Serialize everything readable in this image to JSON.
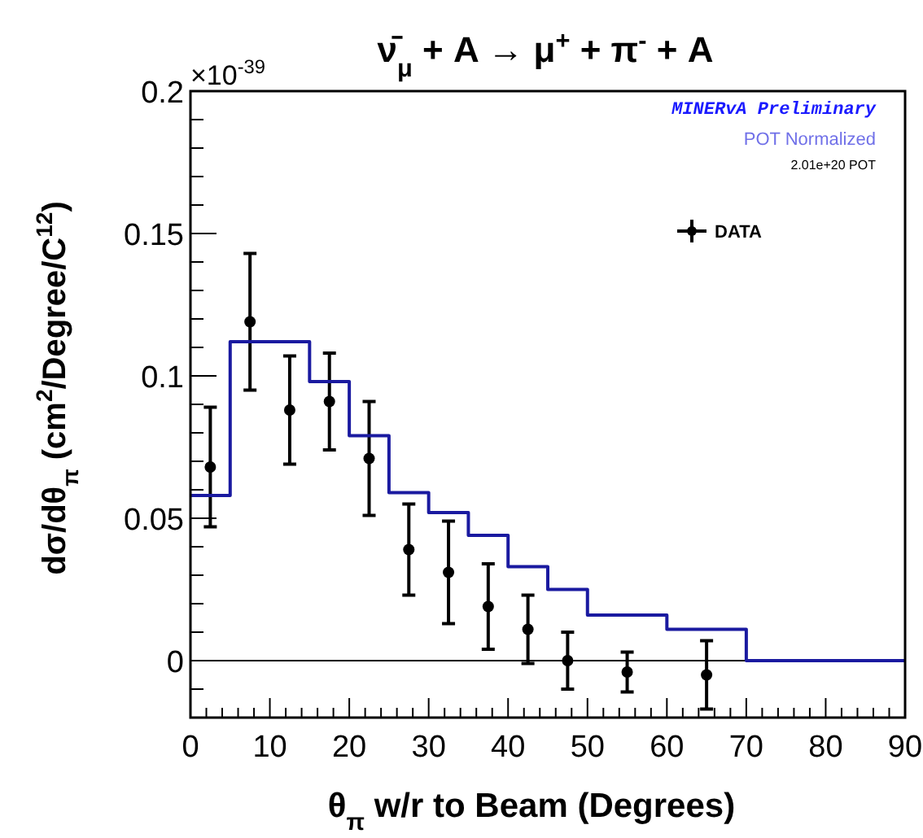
{
  "chart_data": {
    "type": "scatter",
    "title": "ν̄$_{μ}$ + A → μ$^{+}$ + π$^{-}$ + A",
    "xlabel": "θ$_{π}$ w/r to Beam (Degrees)",
    "ylabel": "dσ/dθ$_{π}$ (cm$^{2}$/Degree/C$^{12}$)",
    "annotations": [
      "×10$^{-39}$",
      "MINERvA Preliminary",
      "POT Normalized",
      "2.01e+20 POT"
    ],
    "xlim": [
      0,
      90
    ],
    "ylim": [
      -0.02,
      0.2
    ],
    "xticks": [
      0,
      {
        "value": 2,
        "label": null
      },
      {
        "value": 4,
        "label": null
      },
      {
        "value": 6,
        "label": null
      },
      {
        "value": 8,
        "label": null
      },
      10,
      {
        "value": 12,
        "label": null
      },
      {
        "value": 14,
        "label": null
      },
      {
        "value": 16,
        "label": null
      },
      {
        "value": 18,
        "label": null
      },
      20,
      {
        "value": 22,
        "label": null
      },
      {
        "value": 24,
        "label": null
      },
      {
        "value": 26,
        "label": null
      },
      {
        "value": 28,
        "label": null
      },
      30,
      {
        "value": 32,
        "label": null
      },
      {
        "value": 34,
        "label": null
      },
      {
        "value": 36,
        "label": null
      },
      {
        "value": 38,
        "label": null
      },
      40,
      {
        "value": 42,
        "label": null
      },
      {
        "value": 44,
        "label": null
      },
      {
        "value": 46,
        "label": null
      },
      {
        "value": 48,
        "label": null
      },
      50,
      {
        "value": 52,
        "label": null
      },
      {
        "value": 54,
        "label": null
      },
      {
        "value": 56,
        "label": null
      },
      {
        "value": 58,
        "label": null
      },
      60,
      {
        "value": 62,
        "label": null
      },
      {
        "value": 64,
        "label": null
      },
      {
        "value": 66,
        "label": null
      },
      {
        "value": 68,
        "label": null
      },
      70,
      {
        "value": 72,
        "label": null
      },
      {
        "value": 74,
        "label": null
      },
      {
        "value": 76,
        "label": null
      },
      {
        "value": 78,
        "label": null
      },
      80,
      {
        "value": 82,
        "label": null
      },
      {
        "value": 84,
        "label": null
      },
      {
        "value": 86,
        "label": null
      },
      {
        "value": 88,
        "label": null
      },
      90
    ],
    "yticks": [
      {
        "value": -0.01,
        "label": null
      },
      0,
      {
        "value": 0.01,
        "label": null
      },
      {
        "value": 0.02,
        "label": null
      },
      {
        "value": 0.03,
        "label": null
      },
      {
        "value": 0.04,
        "label": null
      },
      0.05,
      {
        "value": 0.06,
        "label": null
      },
      {
        "value": 0.07,
        "label": null
      },
      {
        "value": 0.08,
        "label": null
      },
      {
        "value": 0.09,
        "label": null
      },
      0.1,
      {
        "value": 0.11,
        "label": null
      },
      {
        "value": 0.12,
        "label": null
      },
      {
        "value": 0.13,
        "label": null
      },
      {
        "value": 0.14,
        "label": null
      },
      0.15,
      {
        "value": 0.16,
        "label": null
      },
      {
        "value": 0.17,
        "label": null
      },
      {
        "value": 0.18,
        "label": null
      },
      {
        "value": 0.19,
        "label": null
      },
      0.2
    ],
    "grid": false,
    "legend": "top right",
    "ref_lines": [
      {
        "axis": "y",
        "value": 0,
        "color": "#000000"
      }
    ],
    "series": [
      {
        "name": "DATA",
        "color": "#000000",
        "marker": "circle",
        "x": [
          2.5,
          7.5,
          12.5,
          17.5,
          22.5,
          27.5,
          32.5,
          37.5,
          42.5,
          47.5,
          55,
          65
        ],
        "values": [
          0.068,
          0.119,
          0.088,
          0.091,
          0.071,
          0.039,
          0.031,
          0.019,
          0.011,
          0,
          -0.004,
          -0.005
        ],
        "errors": [
          0.021,
          0.024,
          0.019,
          0.017,
          0.02,
          0.016,
          0.018,
          0.015,
          0.012,
          0.01,
          0.007,
          0.012
        ]
      },
      {
        "type": "step",
        "color": "#1a1aa0",
        "x": [
          0,
          5,
          15,
          20,
          25,
          30,
          35,
          40,
          45,
          50,
          60,
          70,
          90
        ],
        "values": [
          0.058,
          0.112,
          0.098,
          0.079,
          0.059,
          0.052,
          0.044,
          0.033,
          0.025,
          0.016,
          0.011,
          0,
          0
        ]
      }
    ]
  }
}
